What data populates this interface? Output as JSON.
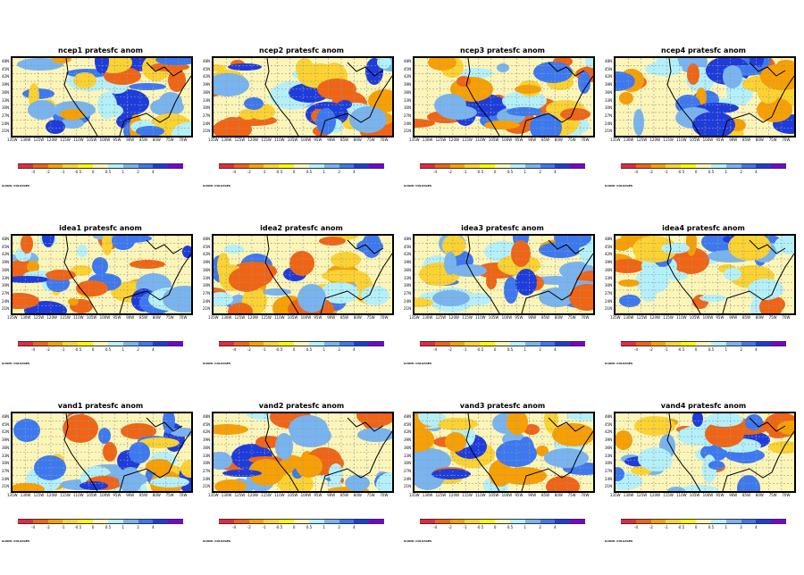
{
  "panels": [
    {
      "title": "ncep1 pratesfc anom"
    },
    {
      "title": "ncep2 pratesfc anom"
    },
    {
      "title": "ncep3 pratesfc anom"
    },
    {
      "title": "ncep4 pratesfc anom"
    },
    {
      "title": "idea1 pratesfc anom"
    },
    {
      "title": "idea2 pratesfc anom"
    },
    {
      "title": "idea3 pratesfc anom"
    },
    {
      "title": "idea4 pratesfc anom"
    },
    {
      "title": "vand1 pratesfc anom"
    },
    {
      "title": "vand2 pratesfc anom"
    },
    {
      "title": "vand3 pratesfc anom"
    },
    {
      "title": "vand4 pratesfc anom"
    }
  ],
  "lat_labels": [
    "48N",
    "45N",
    "42N",
    "39N",
    "36N",
    "33N",
    "30N",
    "27N",
    "24N",
    "21N"
  ],
  "lon_labels": [
    "135W",
    "130W",
    "125W",
    "120W",
    "115W",
    "110W",
    "105W",
    "100W",
    "95W",
    "90W",
    "85W",
    "80W",
    "75W",
    "70W"
  ],
  "colorbar": {
    "labels": [
      "-4",
      "-2",
      "-1",
      "-0.5",
      "0",
      "0.5",
      "1",
      "2",
      "4"
    ],
    "colors": [
      "#e8283c",
      "#f06414",
      "#f8a000",
      "#fcd230",
      "#fcfa00",
      "#fbf5b8",
      "#b4f0fa",
      "#78b4f0",
      "#3c78f0",
      "#1e3cdc",
      "#7800dc"
    ]
  },
  "footer": "GrADS: COLA/IGES"
}
